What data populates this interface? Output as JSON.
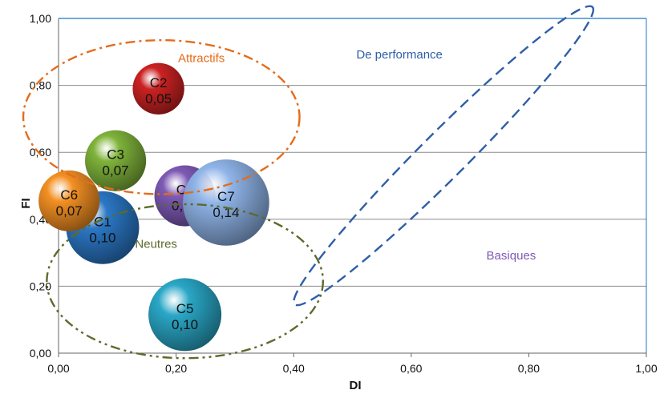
{
  "chart_data": {
    "type": "bubble",
    "xlabel": "DI",
    "ylabel": "FI",
    "xlim": [
      0,
      1
    ],
    "ylim": [
      0,
      1
    ],
    "x_ticks": [
      "0,00",
      "0,20",
      "0,40",
      "0,60",
      "0,80",
      "1,00"
    ],
    "y_ticks": [
      "0,00",
      "0,20",
      "0,40",
      "0,60",
      "0,80",
      "1,00"
    ],
    "grid": "horizontal",
    "bubbles": [
      {
        "label": "C5",
        "value_label": "0,10",
        "x": 0.215,
        "y": 0.115,
        "size": 0.1,
        "color": "#2aa7c7"
      },
      {
        "label": "C1",
        "value_label": "0,10",
        "x": 0.075,
        "y": 0.375,
        "size": 0.1,
        "color": "#2b78c6"
      },
      {
        "label": "C6",
        "value_label": "0,07",
        "x": 0.018,
        "y": 0.455,
        "size": 0.07,
        "color": "#f39023"
      },
      {
        "label": "C3",
        "value_label": "0,07",
        "x": 0.097,
        "y": 0.575,
        "size": 0.07,
        "color": "#7fb33a"
      },
      {
        "label": "C4",
        "value_label": "0,07",
        "x": 0.215,
        "y": 0.47,
        "size": 0.07,
        "color": "#7e5ab5"
      },
      {
        "label": "C2",
        "value_label": "0,05",
        "x": 0.17,
        "y": 0.79,
        "size": 0.05,
        "color": "#cc2222"
      },
      {
        "label": "C7",
        "value_label": "0,14",
        "x": 0.285,
        "y": 0.45,
        "size": 0.14,
        "color": "#8fb4e8"
      }
    ],
    "groups": [
      {
        "name": "Attractifs",
        "color": "#e46c1a",
        "style": "dash-dot",
        "cx": 0.175,
        "cy": 0.705,
        "rx": 0.235,
        "ry": 0.23,
        "rotation": 0,
        "label_x": 0.243,
        "label_y": 0.87
      },
      {
        "name": "Neutres",
        "color": "#5c6b2a",
        "style": "dash-dot-dot",
        "cx": 0.215,
        "cy": 0.215,
        "rx": 0.235,
        "ry": 0.23,
        "rotation": 0,
        "label_x": 0.166,
        "label_y": 0.315
      },
      {
        "name": "De performance",
        "color": "#2f5ea8",
        "style": "dash",
        "cx": 0.655,
        "cy": 0.59,
        "rx": 0.44,
        "ry": 0.048,
        "rotation": -45,
        "label_x": 0.58,
        "label_y": 0.88
      },
      {
        "name": "Basiques",
        "color": "#7e5ab5",
        "style": "none",
        "label_x": 0.77,
        "label_y": 0.28
      }
    ],
    "colors": {
      "grid": "#8c8c8c",
      "top_axis": "#1f77c8",
      "axis": "#666666",
      "text": "#111111"
    }
  }
}
